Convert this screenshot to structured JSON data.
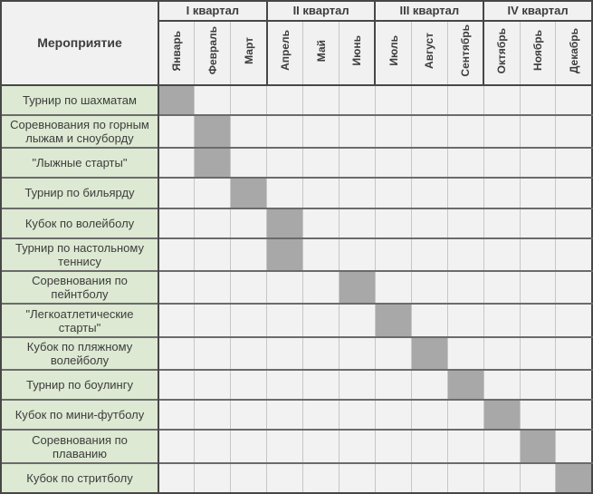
{
  "colors": {
    "border_dark": "#474747",
    "border_row": "#6b6b6b",
    "border_light": "#c6c6c6",
    "header_bg": "#f1f1f1",
    "cell_bg": "#f2f2f2",
    "event_bg": "#dde9d2",
    "filled_bg": "#a8a8a8",
    "text": "#3d3d3d"
  },
  "chart_data": {
    "type": "table",
    "subtype": "gantt-schedule",
    "title": "",
    "row_header": "Мероприятие",
    "legend_position": "none",
    "grid": true,
    "column_groups": [
      {
        "label": "I квартал",
        "span": 3
      },
      {
        "label": "II квартал",
        "span": 3
      },
      {
        "label": "III квартал",
        "span": 3
      },
      {
        "label": "IV квартал",
        "span": 3
      }
    ],
    "columns": [
      "Январь",
      "Февраль",
      "Март",
      "Апрель",
      "Май",
      "Июнь",
      "Июль",
      "Август",
      "Сентябрь",
      "Октябрь",
      "Ноябрь",
      "Декабрь"
    ],
    "rows": [
      {
        "label": "Турнир по шахматам",
        "scheduled_month": "Январь"
      },
      {
        "label": "Соревнования по горным лыжам и сноуборду",
        "scheduled_month": "Февраль"
      },
      {
        "label": "\"Лыжные старты\"",
        "scheduled_month": "Февраль"
      },
      {
        "label": "Турнир по бильярду",
        "scheduled_month": "Март"
      },
      {
        "label": "Кубок по волейболу",
        "scheduled_month": "Апрель"
      },
      {
        "label": "Турнир по настольному теннису",
        "scheduled_month": "Апрель"
      },
      {
        "label": "Соревнования по пейнтболу",
        "scheduled_month": "Июнь"
      },
      {
        "label": "\"Легкоатлетические старты\"",
        "scheduled_month": "Июль"
      },
      {
        "label": "Кубок по пляжному волейболу",
        "scheduled_month": "Август"
      },
      {
        "label": "Турнир по боулингу",
        "scheduled_month": "Сентябрь"
      },
      {
        "label": "Кубок по мини-футболу",
        "scheduled_month": "Октябрь"
      },
      {
        "label": "Соревнования по плаванию",
        "scheduled_month": "Ноябрь"
      },
      {
        "label": "Кубок по стритболу",
        "scheduled_month": "Декабрь"
      }
    ]
  }
}
